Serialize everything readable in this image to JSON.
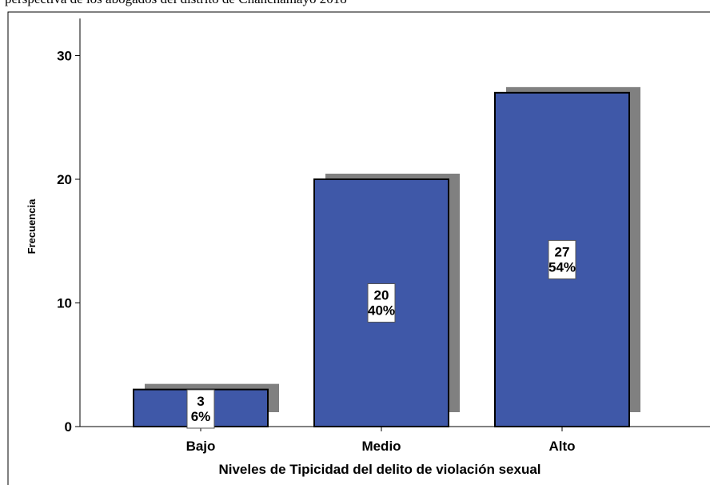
{
  "caption": "perspectiva de los abogados del distrito de Chanchamayo 2018",
  "chart_data": {
    "type": "bar",
    "categories": [
      "Bajo",
      "Medio",
      "Alto"
    ],
    "values": [
      3,
      20,
      27
    ],
    "value_labels": [
      "3",
      "20",
      "27"
    ],
    "percent_labels": [
      "6%",
      "40%",
      "54%"
    ],
    "xlabel": "Niveles de Tipicidad del delito de violación sexual",
    "ylabel": "Frecuencia",
    "ylim": [
      0,
      33
    ],
    "yticks": [
      0,
      10,
      20,
      30
    ],
    "grid": false,
    "bar_color": "#3f58a8",
    "shadow_color": "#808080"
  }
}
